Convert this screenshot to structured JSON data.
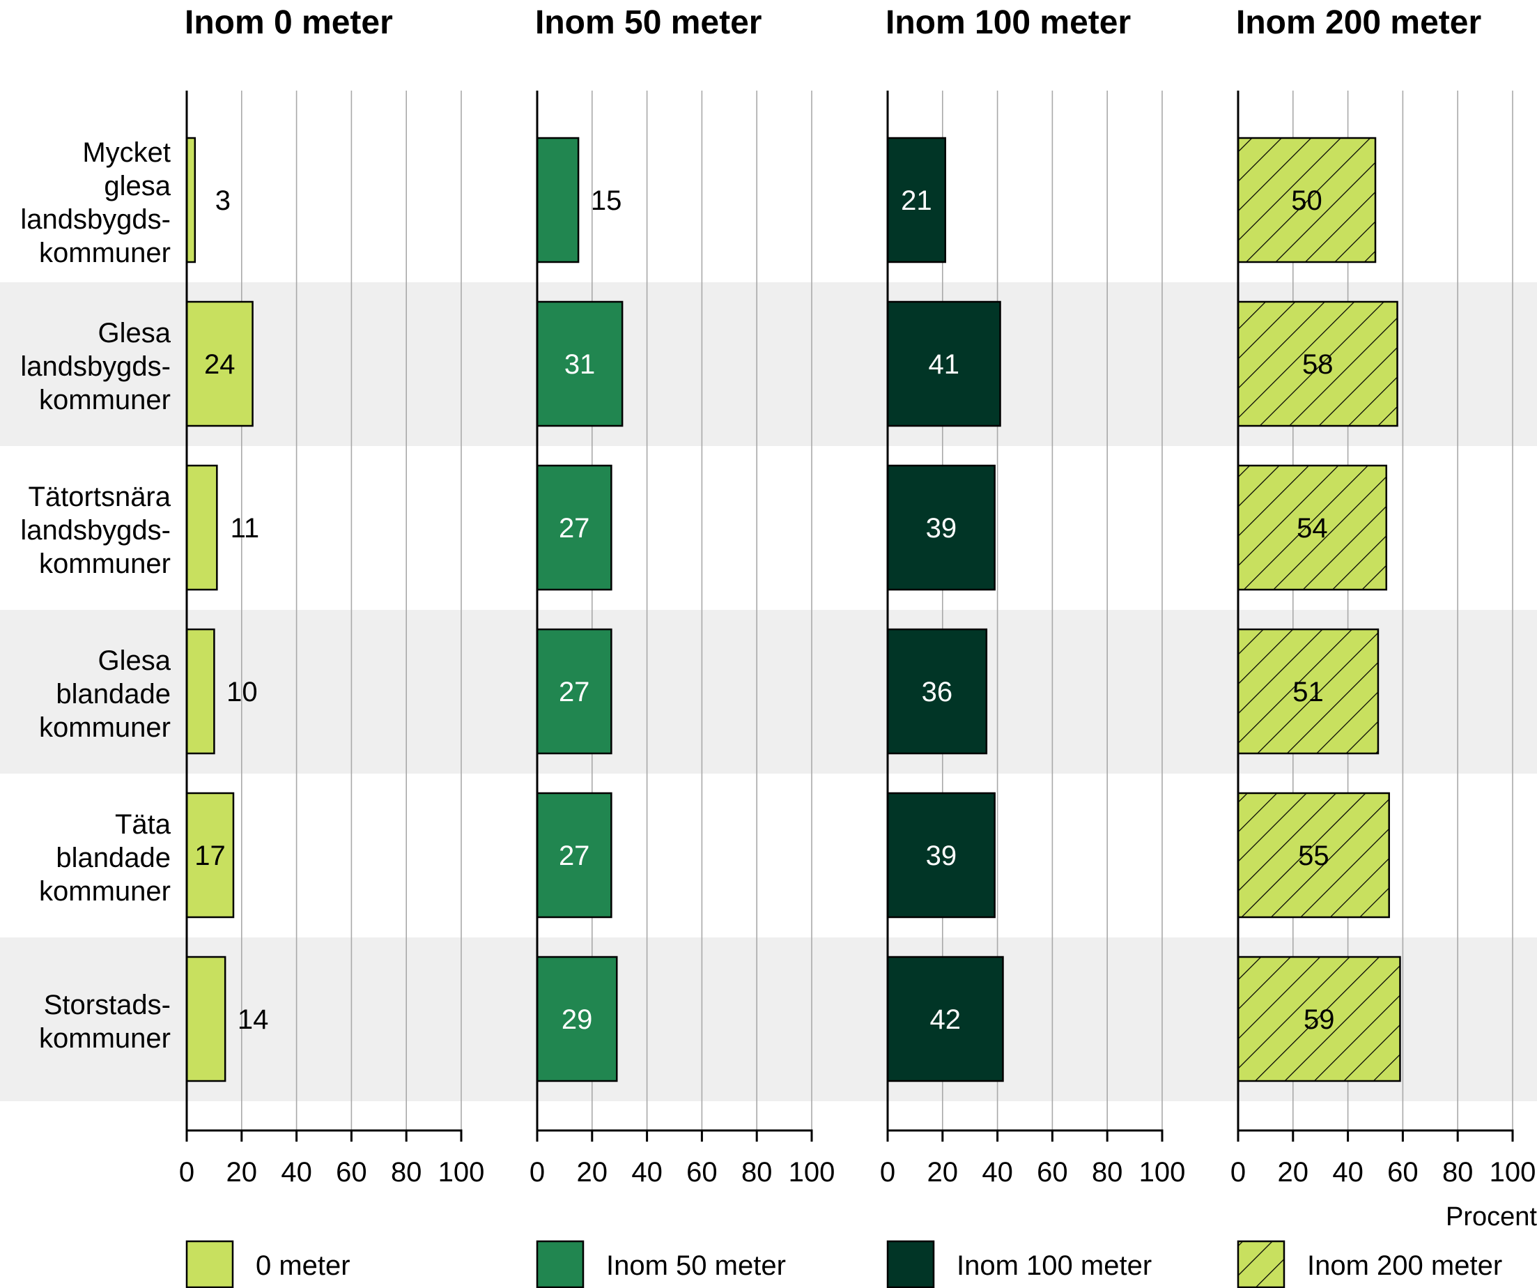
{
  "chart_data": {
    "type": "bar",
    "orientation": "horizontal",
    "categories": [
      "Mycket glesa landsbygds-kommuner",
      "Glesa landsbygds-kommuner",
      "Tätortsnära landsbygds-kommuner",
      "Glesa blandade kommuner",
      "Täta blandade kommuner",
      "Storstads-kommuner"
    ],
    "category_lines": [
      [
        "Mycket",
        "glesa",
        "landsbygds-",
        "kommuner"
      ],
      [
        "Glesa",
        "landsbygds-",
        "kommuner"
      ],
      [
        "Tätortsnära",
        "landsbygds-",
        "kommuner"
      ],
      [
        "Glesa",
        "blandade",
        "kommuner"
      ],
      [
        "Täta",
        "blandade",
        "kommuner"
      ],
      [
        "Storstads-",
        "kommuner"
      ]
    ],
    "series": [
      {
        "title": "Inom 0 meter",
        "name": "0 meter",
        "color": "#c8e05f",
        "hatch": false,
        "label_color": "#000000",
        "values": [
          3,
          24,
          11,
          10,
          17,
          14
        ]
      },
      {
        "title": "Inom 50 meter",
        "name": "Inom 50 meter",
        "color": "#218650",
        "hatch": false,
        "label_color": "#ffffff",
        "values": [
          15,
          31,
          27,
          27,
          27,
          29
        ]
      },
      {
        "title": "Inom 100 meter",
        "name": "Inom 100 meter",
        "color": "#013526",
        "hatch": false,
        "label_color": "#ffffff",
        "values": [
          21,
          41,
          39,
          36,
          39,
          42
        ]
      },
      {
        "title": "Inom 200 meter",
        "name": "Inom 200 meter",
        "color": "#c8e05f",
        "hatch": true,
        "label_color": "#000000",
        "values": [
          50,
          58,
          54,
          51,
          55,
          59
        ]
      }
    ],
    "xlim": [
      0,
      100
    ],
    "xticks": [
      0,
      20,
      40,
      60,
      80,
      100
    ],
    "xlabel": "Procent",
    "grid": true,
    "alternating_row_shading": "#efefef",
    "legend_position": "bottom"
  }
}
